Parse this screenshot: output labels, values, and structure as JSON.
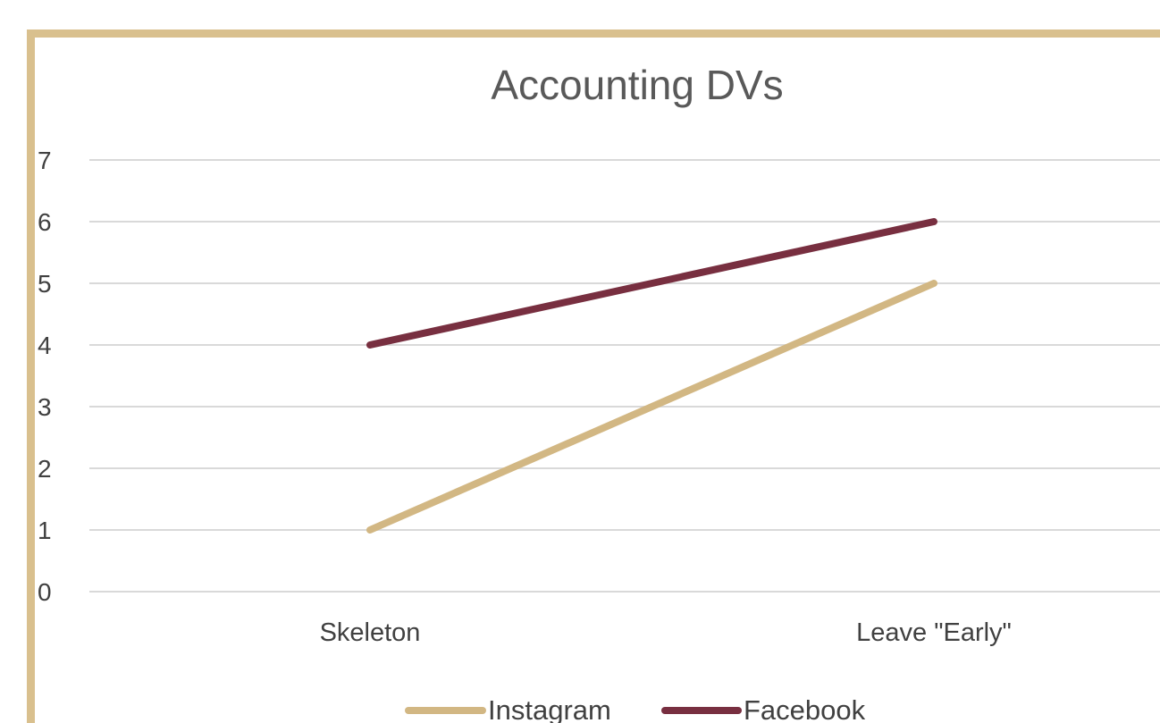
{
  "colors": {
    "frame_border": "#D9C08E",
    "gridline": "#D9D9D9",
    "text": "#404040",
    "title": "#595959"
  },
  "chart_data": {
    "type": "line",
    "title": "Accounting DVs",
    "xlabel": "",
    "ylabel": "",
    "categories": [
      "Skeleton",
      "Leave \"Early\""
    ],
    "ylim": [
      0,
      7
    ],
    "yticks": [
      "0",
      "1",
      "2",
      "3",
      "4",
      "5",
      "6",
      "7"
    ],
    "grid": true,
    "legend_position": "bottom",
    "series": [
      {
        "name": "Instagram",
        "values": [
          1,
          5
        ],
        "color": "#D2B783"
      },
      {
        "name": "Facebook",
        "values": [
          4,
          6
        ],
        "color": "#782F40"
      }
    ]
  }
}
